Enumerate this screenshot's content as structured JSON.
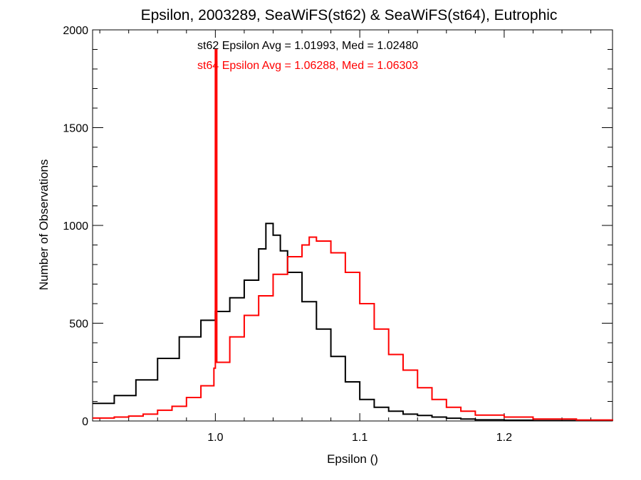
{
  "chart_data": {
    "type": "line",
    "title": "Epsilon, 2003289, SeaWiFS(st62) & SeaWiFS(st64), Eutrophic",
    "xlabel": "Epsilon ()",
    "ylabel": "Number of Observations",
    "xlim": [
      0.915,
      1.275
    ],
    "ylim": [
      0,
      2000
    ],
    "x_ticks": [
      1.0,
      1.1,
      1.2
    ],
    "x_tick_labels": [
      "1.0",
      "1.1",
      "1.2"
    ],
    "y_ticks": [
      0,
      500,
      1000,
      1500,
      2000
    ],
    "y_tick_labels": [
      "0",
      "500",
      "1000",
      "1500",
      "2000"
    ],
    "grid": false,
    "annotations": [
      {
        "text": "st62 Epsilon Avg = 1.01993, Med = 1.02480",
        "color": "#000000"
      },
      {
        "text": "st64 Epsilon Avg = 1.06288, Med = 1.06303",
        "color": "#ff0000"
      }
    ],
    "series": [
      {
        "color": "#000000",
        "style": "step",
        "points": [
          [
            0.915,
            90
          ],
          [
            0.93,
            130
          ],
          [
            0.945,
            210
          ],
          [
            0.96,
            320
          ],
          [
            0.975,
            430
          ],
          [
            0.99,
            515
          ],
          [
            1.0,
            560
          ],
          [
            1.01,
            630
          ],
          [
            1.02,
            720
          ],
          [
            1.03,
            880
          ],
          [
            1.035,
            1010
          ],
          [
            1.04,
            950
          ],
          [
            1.045,
            870
          ],
          [
            1.05,
            760
          ],
          [
            1.06,
            610
          ],
          [
            1.07,
            470
          ],
          [
            1.08,
            330
          ],
          [
            1.09,
            200
          ],
          [
            1.1,
            110
          ],
          [
            1.11,
            70
          ],
          [
            1.12,
            50
          ],
          [
            1.13,
            35
          ],
          [
            1.14,
            28
          ],
          [
            1.15,
            20
          ],
          [
            1.16,
            14
          ],
          [
            1.17,
            10
          ],
          [
            1.18,
            6
          ],
          [
            1.2,
            4
          ],
          [
            1.22,
            2
          ],
          [
            1.275,
            1
          ]
        ]
      },
      {
        "color": "#ff0000",
        "style": "step",
        "points": [
          [
            0.915,
            15
          ],
          [
            0.93,
            20
          ],
          [
            0.94,
            25
          ],
          [
            0.95,
            35
          ],
          [
            0.96,
            55
          ],
          [
            0.97,
            75
          ],
          [
            0.98,
            120
          ],
          [
            0.99,
            180
          ],
          [
            0.999,
            270
          ],
          [
            1.0,
            1900
          ],
          [
            1.001,
            300
          ],
          [
            1.01,
            430
          ],
          [
            1.02,
            540
          ],
          [
            1.03,
            640
          ],
          [
            1.04,
            750
          ],
          [
            1.05,
            840
          ],
          [
            1.06,
            900
          ],
          [
            1.065,
            940
          ],
          [
            1.07,
            920
          ],
          [
            1.08,
            860
          ],
          [
            1.09,
            760
          ],
          [
            1.1,
            600
          ],
          [
            1.11,
            470
          ],
          [
            1.12,
            340
          ],
          [
            1.13,
            260
          ],
          [
            1.14,
            170
          ],
          [
            1.15,
            110
          ],
          [
            1.16,
            70
          ],
          [
            1.17,
            50
          ],
          [
            1.18,
            30
          ],
          [
            1.2,
            20
          ],
          [
            1.22,
            10
          ],
          [
            1.25,
            5
          ],
          [
            1.275,
            2
          ]
        ]
      }
    ]
  }
}
